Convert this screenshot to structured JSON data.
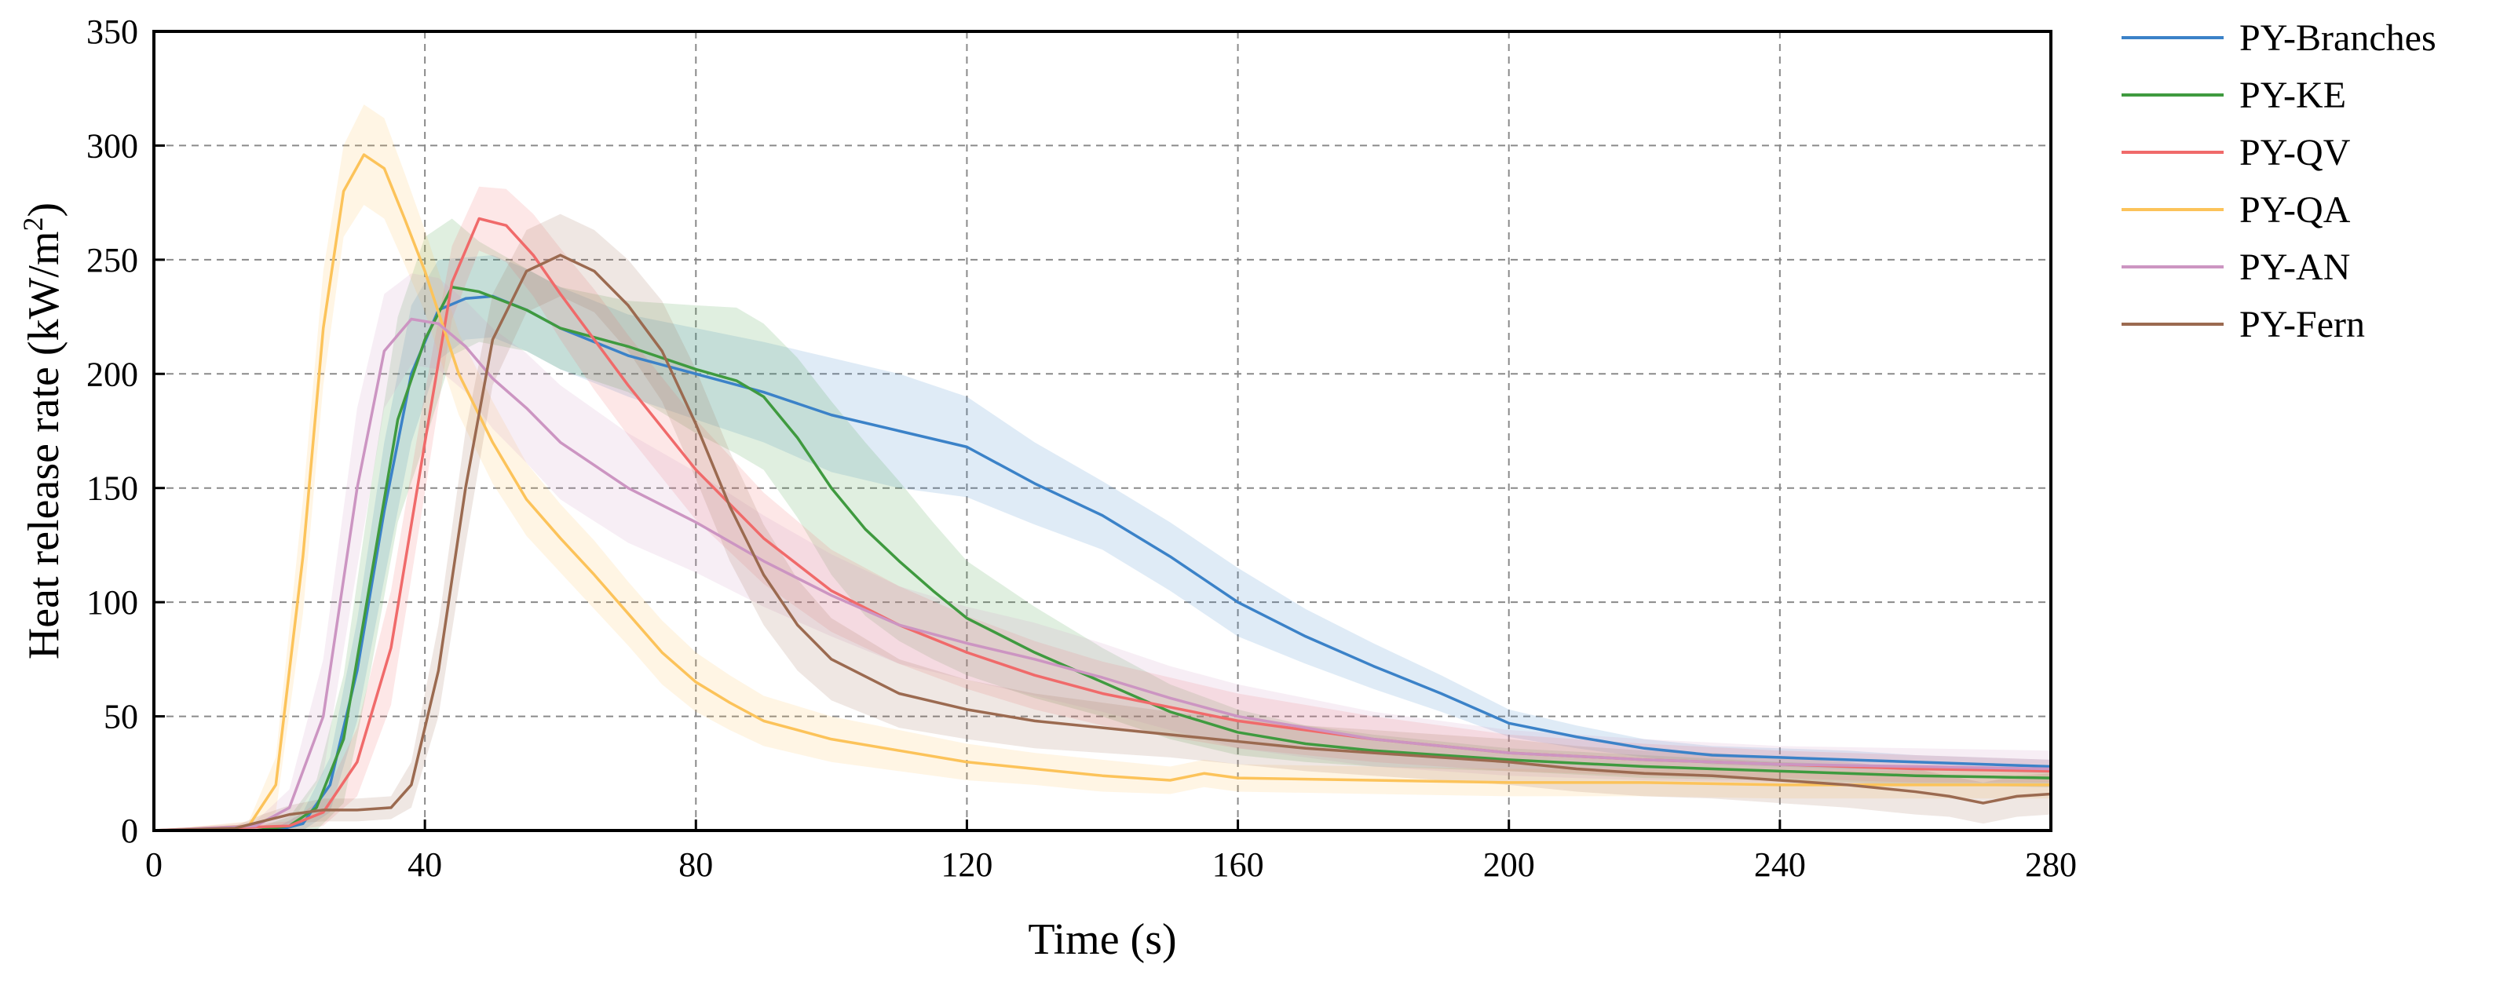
{
  "chart_data": {
    "type": "line",
    "title": "",
    "xlabel": "Time (s)",
    "ylabel": "Heat release rate (kW/m²)",
    "xlim": [
      0,
      280
    ],
    "ylim": [
      0,
      350
    ],
    "xticks": [
      0,
      40,
      80,
      120,
      160,
      200,
      240,
      280
    ],
    "yticks": [
      0,
      50,
      100,
      150,
      200,
      250,
      300,
      350
    ],
    "grid": "dashed",
    "legend_position": "right",
    "shaded_band": "variability band around each series",
    "series": [
      {
        "name": "PY-Branches",
        "color": "#3b82c8",
        "x": [
          0,
          18,
          22,
          26,
          30,
          34,
          38,
          42,
          46,
          50,
          55,
          60,
          70,
          80,
          90,
          100,
          110,
          120,
          130,
          140,
          150,
          160,
          170,
          180,
          190,
          200,
          210,
          220,
          230,
          240,
          250,
          260,
          270,
          280
        ],
        "y": [
          0,
          0,
          3,
          20,
          70,
          140,
          200,
          228,
          233,
          234,
          228,
          220,
          208,
          200,
          192,
          182,
          175,
          168,
          152,
          138,
          120,
          100,
          85,
          72,
          60,
          47,
          41,
          36,
          33,
          32,
          31,
          30,
          29,
          28
        ],
        "band": [
          0,
          1,
          5,
          12,
          22,
          30,
          30,
          22,
          18,
          18,
          18,
          18,
          18,
          20,
          22,
          25,
          25,
          22,
          18,
          15,
          15,
          15,
          12,
          10,
          8,
          6,
          5,
          4,
          4,
          4,
          4,
          3,
          3,
          3
        ]
      },
      {
        "name": "PY-KE",
        "color": "#3f9a3f",
        "x": [
          0,
          15,
          20,
          24,
          28,
          32,
          36,
          40,
          44,
          48,
          55,
          60,
          70,
          80,
          86,
          90,
          95,
          100,
          105,
          110,
          115,
          120,
          130,
          140,
          150,
          160,
          170,
          180,
          190,
          200,
          220,
          240,
          260,
          280
        ],
        "y": [
          0,
          0,
          2,
          10,
          40,
          110,
          180,
          215,
          238,
          236,
          228,
          220,
          212,
          202,
          197,
          190,
          172,
          150,
          132,
          118,
          105,
          93,
          78,
          65,
          52,
          43,
          38,
          35,
          33,
          31,
          28,
          26,
          24,
          23
        ],
        "band": [
          0,
          1,
          4,
          12,
          28,
          40,
          45,
          45,
          30,
          22,
          18,
          18,
          20,
          28,
          32,
          32,
          35,
          38,
          38,
          35,
          30,
          25,
          20,
          15,
          12,
          10,
          8,
          7,
          6,
          5,
          5,
          4,
          4,
          4
        ]
      },
      {
        "name": "PY-QV",
        "color": "#f06a6a",
        "x": [
          0,
          20,
          25,
          30,
          35,
          40,
          44,
          48,
          52,
          56,
          60,
          65,
          70,
          80,
          90,
          100,
          110,
          120,
          130,
          140,
          150,
          160,
          170,
          180,
          190,
          200,
          220,
          240,
          260,
          280
        ],
        "y": [
          0,
          2,
          8,
          30,
          80,
          170,
          240,
          268,
          265,
          252,
          235,
          215,
          195,
          158,
          128,
          105,
          90,
          78,
          68,
          60,
          54,
          48,
          44,
          40,
          37,
          34,
          31,
          29,
          27,
          26
        ],
        "band": [
          0,
          2,
          6,
          15,
          25,
          22,
          16,
          14,
          16,
          18,
          20,
          22,
          22,
          22,
          20,
          18,
          17,
          16,
          15,
          14,
          13,
          12,
          11,
          10,
          9,
          8,
          7,
          6,
          6,
          5
        ]
      },
      {
        "name": "PY-QA",
        "color": "#fcc35a",
        "x": [
          0,
          14,
          18,
          22,
          25,
          28,
          31,
          34,
          37,
          40,
          45,
          50,
          55,
          60,
          65,
          70,
          75,
          80,
          85,
          90,
          100,
          110,
          120,
          130,
          140,
          150,
          155,
          160,
          180,
          200,
          220,
          240,
          260,
          280
        ],
        "y": [
          0,
          2,
          20,
          120,
          220,
          280,
          296,
          290,
          268,
          245,
          200,
          170,
          145,
          128,
          112,
          95,
          78,
          65,
          56,
          48,
          40,
          35,
          30,
          27,
          24,
          22,
          25,
          23,
          22,
          21,
          21,
          20,
          20,
          20
        ],
        "band": [
          0,
          2,
          12,
          25,
          25,
          20,
          22,
          22,
          20,
          18,
          18,
          18,
          16,
          15,
          15,
          14,
          14,
          13,
          12,
          11,
          10,
          9,
          8,
          7,
          7,
          6,
          6,
          6,
          6,
          6,
          6,
          6,
          6,
          6
        ]
      },
      {
        "name": "PY-AN",
        "color": "#cc95c2",
        "x": [
          0,
          15,
          20,
          25,
          30,
          34,
          38,
          42,
          46,
          50,
          55,
          60,
          70,
          80,
          90,
          100,
          110,
          120,
          130,
          140,
          150,
          160,
          170,
          180,
          190,
          200,
          220,
          240,
          260,
          280
        ],
        "y": [
          0,
          2,
          10,
          50,
          150,
          210,
          224,
          222,
          212,
          198,
          185,
          170,
          150,
          135,
          118,
          103,
          90,
          82,
          75,
          67,
          58,
          50,
          45,
          40,
          37,
          34,
          31,
          29,
          28,
          27
        ],
        "band": [
          0,
          2,
          8,
          25,
          35,
          25,
          20,
          20,
          20,
          22,
          24,
          25,
          24,
          22,
          20,
          18,
          17,
          16,
          16,
          15,
          14,
          14,
          13,
          12,
          11,
          10,
          9,
          8,
          8,
          8
        ]
      },
      {
        "name": "PY-Fern",
        "color": "#9b6a50",
        "x": [
          0,
          12,
          16,
          20,
          25,
          30,
          35,
          38,
          42,
          46,
          50,
          55,
          60,
          65,
          70,
          75,
          80,
          85,
          90,
          95,
          100,
          110,
          120,
          130,
          140,
          150,
          160,
          170,
          180,
          190,
          200,
          210,
          220,
          230,
          240,
          250,
          260,
          265,
          270,
          275,
          280
        ],
        "y": [
          0,
          1,
          4,
          7,
          9,
          9,
          10,
          20,
          70,
          150,
          215,
          245,
          252,
          245,
          230,
          210,
          178,
          142,
          112,
          90,
          75,
          60,
          53,
          48,
          45,
          42,
          39,
          36,
          34,
          32,
          30,
          27,
          25,
          24,
          22,
          20,
          17,
          15,
          12,
          15,
          16
        ],
        "band": [
          0,
          1,
          3,
          4,
          5,
          5,
          5,
          10,
          20,
          25,
          20,
          18,
          18,
          18,
          20,
          22,
          24,
          24,
          22,
          20,
          18,
          15,
          13,
          12,
          11,
          10,
          10,
          10,
          10,
          10,
          10,
          10,
          10,
          10,
          10,
          10,
          10,
          9,
          9,
          9,
          9
        ]
      }
    ]
  }
}
